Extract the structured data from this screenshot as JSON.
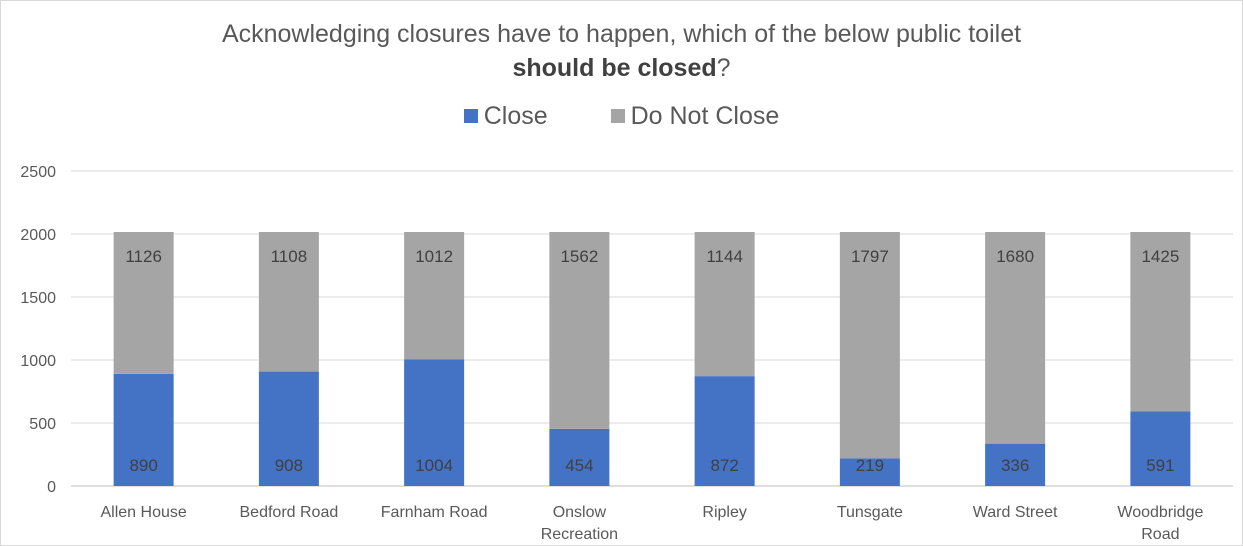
{
  "chart_data": {
    "type": "bar",
    "stacked": true,
    "title_line1": "Acknowledging closures have to happen, which of the below public toilet",
    "title_line2_bold": "should be closed",
    "title_line2_suffix": "?",
    "xlabel": "",
    "ylabel": "",
    "ylim": [
      0,
      2500
    ],
    "yticks": [
      0,
      500,
      1000,
      1500,
      2000,
      2500
    ],
    "grid": true,
    "legend_position": "top",
    "categories": [
      [
        "Allen House"
      ],
      [
        "Bedford Road"
      ],
      [
        "Farnham Road"
      ],
      [
        "Onslow",
        "Recreation"
      ],
      [
        "Ripley"
      ],
      [
        "Tunsgate"
      ],
      [
        "Ward Street"
      ],
      [
        "Woodbridge",
        "Road"
      ]
    ],
    "series": [
      {
        "name": "Close",
        "color": "#4472c4",
        "values": [
          890,
          908,
          1004,
          454,
          872,
          219,
          336,
          591
        ]
      },
      {
        "name": "Do Not Close",
        "color": "#a5a5a5",
        "values": [
          1126,
          1108,
          1012,
          1562,
          1144,
          1797,
          1680,
          1425
        ]
      }
    ]
  }
}
